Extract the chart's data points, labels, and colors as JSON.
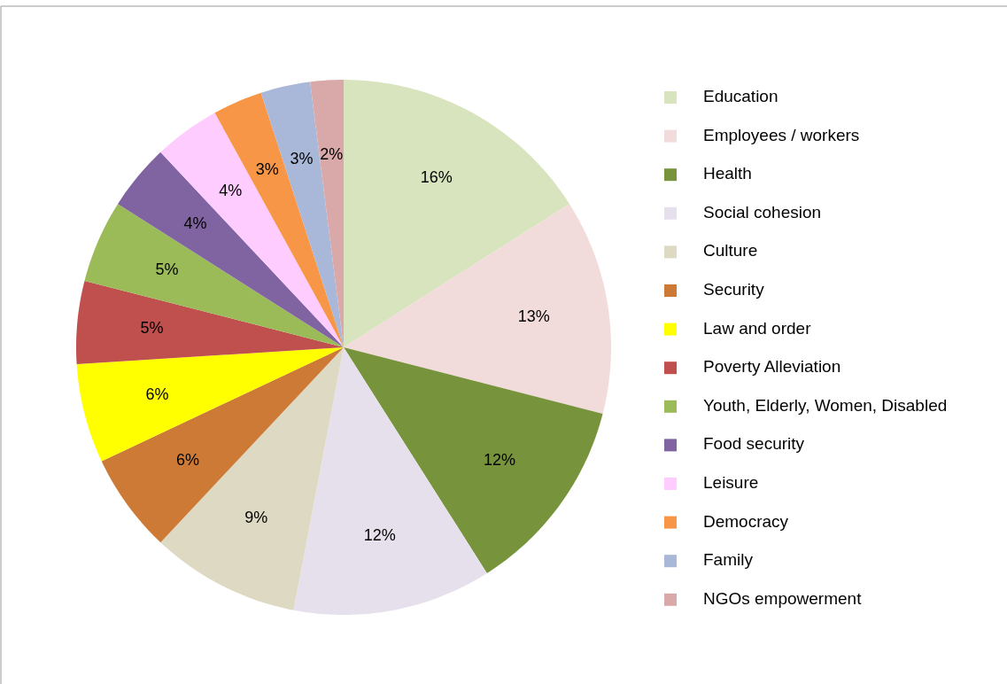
{
  "chart_data": {
    "type": "pie",
    "categories": [
      "Education",
      "Employees / workers",
      "Health",
      "Social cohesion",
      "Culture",
      "Security",
      "Law and order",
      "Poverty Alleviation",
      "Youth, Elderly, Women, Disabled",
      "Food security",
      "Leisure",
      "Democracy",
      "Family",
      "NGOs empowerment"
    ],
    "values": [
      16,
      13,
      12,
      12,
      9,
      6,
      6,
      5,
      5,
      4,
      4,
      3,
      3,
      2
    ],
    "colors": [
      "#d7e4bd",
      "#f2dcdb",
      "#77933c",
      "#e6e0ec",
      "#ddd9c3",
      "#cc7a35",
      "#ffff00",
      "#c0504d",
      "#9bbb59",
      "#8064a2",
      "#ffccff",
      "#f79646",
      "#a9b8d8",
      "#d9a9a9"
    ],
    "value_labels": [
      "16%",
      "13%",
      "12%",
      "12%",
      "9%",
      "6%",
      "6%",
      "5%",
      "5%",
      "4%",
      "4%",
      "3%",
      "3%",
      "2%"
    ],
    "legend": "right"
  }
}
